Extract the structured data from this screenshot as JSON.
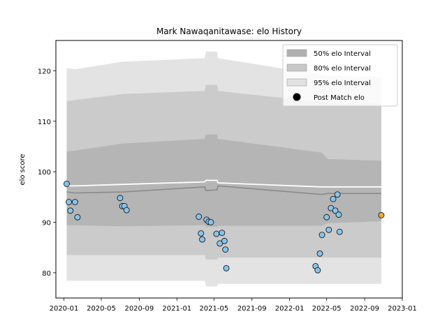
{
  "chart_data": {
    "type": "area",
    "title": "Mark Nawaqanitawase: elo History",
    "xlabel": "",
    "ylabel": "elo score",
    "xlim": [
      "2019-12-06",
      "2023-01-01"
    ],
    "ylim": [
      75,
      126
    ],
    "grid": false,
    "legend_placement": "top-right",
    "x_ticks": [
      "2020-01",
      "2020-05",
      "2020-09",
      "2021-01",
      "2021-05",
      "2021-09",
      "2022-01",
      "2022-05",
      "2022-09",
      "2023-01"
    ],
    "y_ticks": [
      80,
      90,
      100,
      110,
      120
    ],
    "legend": [
      {
        "label": "50% elo Interval",
        "kind": "band",
        "color": "#b0b0b0"
      },
      {
        "label": "80% elo Interval",
        "kind": "band",
        "color": "#c8c8c8"
      },
      {
        "label": "95% elo Interval",
        "kind": "band",
        "color": "#e2e2e2"
      },
      {
        "label": "Post Match elo",
        "kind": "marker",
        "color": "#000000"
      }
    ],
    "colors": {
      "band_50": "#b5b5b5",
      "band_80": "#cbcbcb",
      "band_95": "#e3e3e3",
      "mean_line": "#ffffff",
      "median_line": "#8a8a8a",
      "points": "#89c4ec",
      "last_point": "#f2aa1e"
    },
    "bands": {
      "x": [
        "2020-01-10",
        "2020-02-06",
        "2020-07-10",
        "2021-04-01",
        "2021-04-05",
        "2021-05-11",
        "2021-05-14",
        "2022-04-15",
        "2022-05-05",
        "2022-10-25"
      ],
      "p95_low": [
        78.4,
        78.4,
        78.4,
        78.4,
        77.3,
        77.3,
        77.8,
        77.8,
        77.8,
        77.8
      ],
      "p80_low": [
        83.5,
        83.5,
        83.5,
        83.5,
        82.6,
        82.6,
        83.0,
        83.0,
        83.0,
        83.0
      ],
      "p50_low": [
        89.4,
        89.4,
        89.2,
        89.4,
        89.1,
        89.1,
        89.3,
        89.3,
        89.8,
        90.2
      ],
      "p50_high": [
        104.0,
        104.2,
        105.6,
        106.5,
        107.4,
        107.4,
        106.5,
        103.8,
        102.5,
        102.2
      ],
      "p80_high": [
        114.0,
        114.2,
        115.4,
        116.0,
        117.2,
        117.2,
        116.0,
        113.8,
        113.5,
        113.5
      ],
      "p95_high": [
        120.5,
        120.3,
        121.8,
        122.5,
        123.8,
        123.8,
        122.5,
        119.2,
        119.0,
        118.8
      ],
      "mean": [
        97.2,
        97.2,
        97.5,
        98.0,
        98.3,
        98.3,
        97.8,
        97.0,
        97.0,
        97.0
      ],
      "median": [
        96.0,
        95.8,
        96.0,
        97.0,
        96.3,
        96.4,
        97.2,
        95.5,
        95.7,
        95.7
      ]
    },
    "points": {
      "x": [
        "2020-01-10",
        "2020-01-17",
        "2020-01-22",
        "2020-02-06",
        "2020-02-14",
        "2020-07-01",
        "2020-07-08",
        "2020-07-15",
        "2020-07-22",
        "2021-03-13",
        "2021-03-20",
        "2021-03-24",
        "2021-04-07",
        "2021-04-14",
        "2021-04-21",
        "2021-05-09",
        "2021-05-20",
        "2021-05-27",
        "2021-06-04",
        "2021-06-07",
        "2021-06-10",
        "2022-03-26",
        "2022-04-02",
        "2022-04-09",
        "2022-04-16",
        "2022-05-01",
        "2022-05-08",
        "2022-05-15",
        "2022-05-22",
        "2022-05-29",
        "2022-06-05",
        "2022-06-09",
        "2022-06-12",
        "2022-10-25"
      ],
      "y": [
        97.6,
        94.0,
        92.3,
        94.0,
        91.0,
        94.8,
        93.2,
        93.2,
        92.4,
        91.1,
        87.8,
        86.6,
        90.5,
        90.1,
        90.0,
        87.7,
        85.8,
        87.9,
        86.3,
        84.6,
        80.9,
        81.3,
        80.5,
        83.8,
        87.5,
        91.0,
        88.5,
        92.8,
        94.6,
        92.3,
        95.5,
        91.5,
        88.1,
        91.4
      ]
    }
  }
}
